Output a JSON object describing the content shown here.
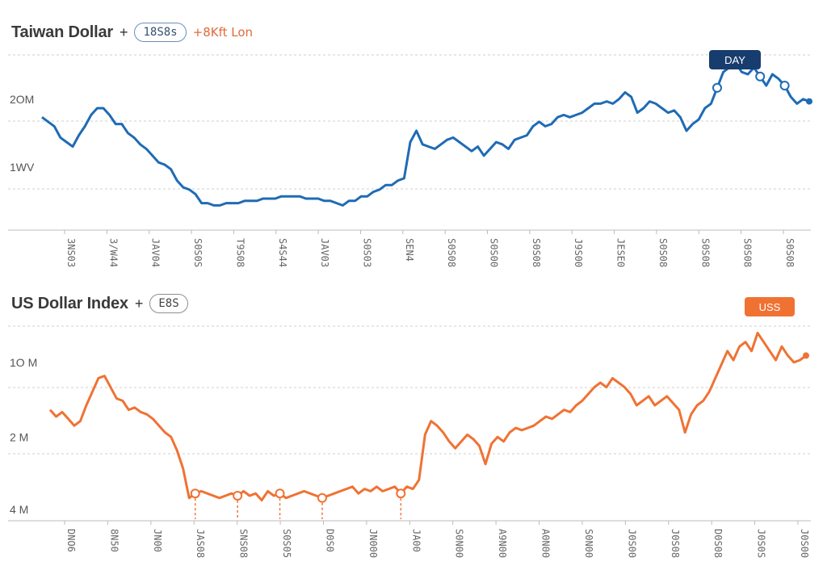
{
  "charts": [
    {
      "title": "Taiwan Dollar",
      "plus_label": "+",
      "pill_label": "18S8s",
      "sub_label": "+8Kft Lon",
      "badge_label": "DAY",
      "colors": {
        "line": "#1f6bb5",
        "badge": "#173d6e",
        "badge_text": "#ffffff"
      }
    },
    {
      "title": "US Dollar Index",
      "plus_label": "+",
      "pill_label": "E8S",
      "badge_label": "USS",
      "colors": {
        "line": "#f07233",
        "badge": "#f07233",
        "badge_text": "#ffffff"
      }
    }
  ],
  "chart_data": [
    {
      "type": "line",
      "title": "Taiwan Dollar",
      "y_ticks": [
        "2OM",
        "1WV"
      ],
      "y_tick_values": [
        70,
        40
      ],
      "ylim": [
        0,
        100
      ],
      "x_tick_labels": [
        "3NS03",
        "3/W44",
        "JAV04",
        "S0S0S",
        "T9S08",
        "S4S44",
        "JAV03",
        "S0S03",
        "SEN4",
        "S0S08",
        "S0S00",
        "S0S08",
        "J9S00",
        "JESE0",
        "S0S08",
        "S0S08",
        "S0S08",
        "S0S08"
      ],
      "series": [
        {
          "name": "Taiwan Dollar",
          "values": [
            66,
            64,
            62,
            57,
            55,
            53,
            58,
            62,
            67,
            70,
            70,
            67,
            63,
            63,
            59,
            57,
            54,
            52,
            49,
            46,
            45,
            43,
            38,
            35,
            34,
            32,
            28,
            28,
            27,
            27,
            28,
            28,
            28,
            29,
            29,
            29,
            30,
            30,
            30,
            31,
            31,
            31,
            31,
            30,
            30,
            30,
            29,
            29,
            28,
            27,
            29,
            29,
            31,
            31,
            33,
            34,
            36,
            36,
            38,
            39,
            55,
            60,
            54,
            53,
            52,
            54,
            56,
            57,
            55,
            53,
            51,
            53,
            49,
            52,
            55,
            54,
            52,
            56,
            57,
            58,
            62,
            64,
            62,
            63,
            66,
            67,
            66,
            67,
            68,
            70,
            72,
            72,
            73,
            72,
            74,
            77,
            75,
            68,
            70,
            73,
            72,
            70,
            68,
            69,
            66,
            60,
            63,
            65,
            70,
            72,
            79,
            86,
            88,
            90,
            86,
            85,
            88,
            84,
            80,
            85,
            83,
            80,
            75,
            72,
            74,
            73
          ]
        }
      ]
    },
    {
      "type": "line",
      "title": "US Dollar Index",
      "y_ticks": [
        "1O M",
        "2 M",
        "4 M"
      ],
      "y_tick_values": [
        75,
        42,
        10
      ],
      "ylim": [
        0,
        100
      ],
      "x_tick_labels": [
        "DNO6",
        "8N50",
        "JN00",
        "JAS08",
        "SNS08",
        "S0S05",
        "D0S0",
        "JN000",
        "JA00",
        "S0N00",
        "A9N00",
        "A0N00",
        "S0N00",
        "J0S00",
        "J0S08",
        "D0S08",
        "J0S0S",
        "J0S00"
      ],
      "series": [
        {
          "name": "US Dollar Index",
          "values": [
            58,
            55,
            57,
            54,
            51,
            53,
            60,
            66,
            72,
            73,
            68,
            63,
            62,
            58,
            59,
            57,
            56,
            54,
            51,
            48,
            46,
            40,
            32,
            19,
            21,
            22,
            21,
            20,
            19,
            20,
            21,
            20,
            22,
            20,
            21,
            18,
            22,
            20,
            21,
            19,
            20,
            21,
            22,
            21,
            20,
            19,
            20,
            21,
            22,
            23,
            24,
            21,
            23,
            22,
            24,
            22,
            23,
            24,
            21,
            24,
            23,
            27,
            47,
            53,
            51,
            48,
            44,
            41,
            44,
            47,
            45,
            42,
            34,
            43,
            46,
            44,
            48,
            50,
            49,
            50,
            51,
            53,
            55,
            54,
            56,
            58,
            57,
            60,
            62,
            65,
            68,
            70,
            68,
            72,
            70,
            68,
            65,
            60,
            62,
            64,
            60,
            62,
            64,
            61,
            58,
            48,
            56,
            60,
            62,
            66,
            72,
            78,
            84,
            80,
            86,
            88,
            84,
            92,
            88,
            84,
            80,
            86,
            82,
            79,
            80,
            82
          ]
        }
      ]
    }
  ]
}
